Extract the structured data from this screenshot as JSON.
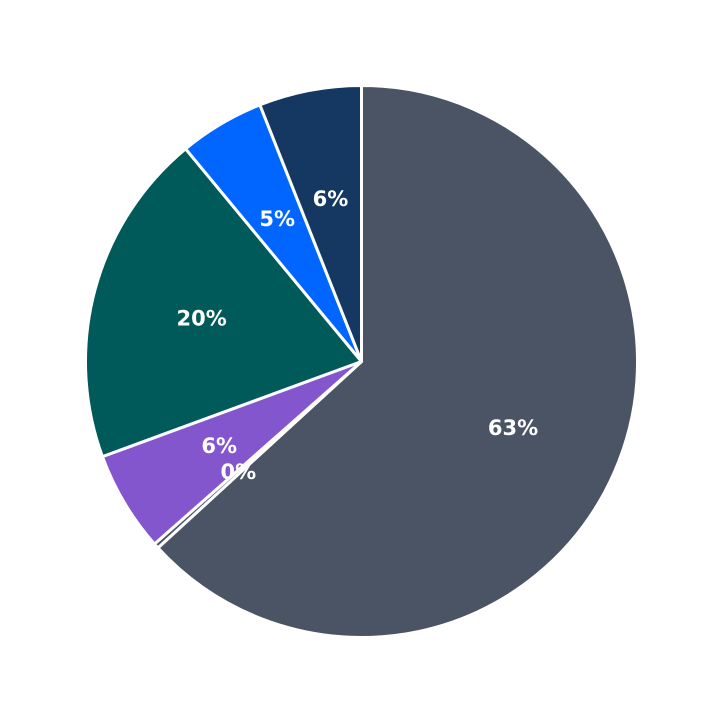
{
  "chart_data": {
    "type": "pie",
    "legend": false,
    "start_angle": "top",
    "direction": "clockwise",
    "slices": [
      {
        "value": 63.2,
        "label": "63%",
        "color": "#4a5464"
      },
      {
        "value": 0.3,
        "label": "0%",
        "color": "#4a5464"
      },
      {
        "value": 5.9,
        "label": "6%",
        "color": "#8456ce"
      },
      {
        "value": 19.6,
        "label": "20%",
        "color": "#005a59"
      },
      {
        "value": 5.0,
        "label": "5%",
        "color": "#0066ff"
      },
      {
        "value": 6.0,
        "label": "6%",
        "color": "#143862"
      }
    ]
  }
}
